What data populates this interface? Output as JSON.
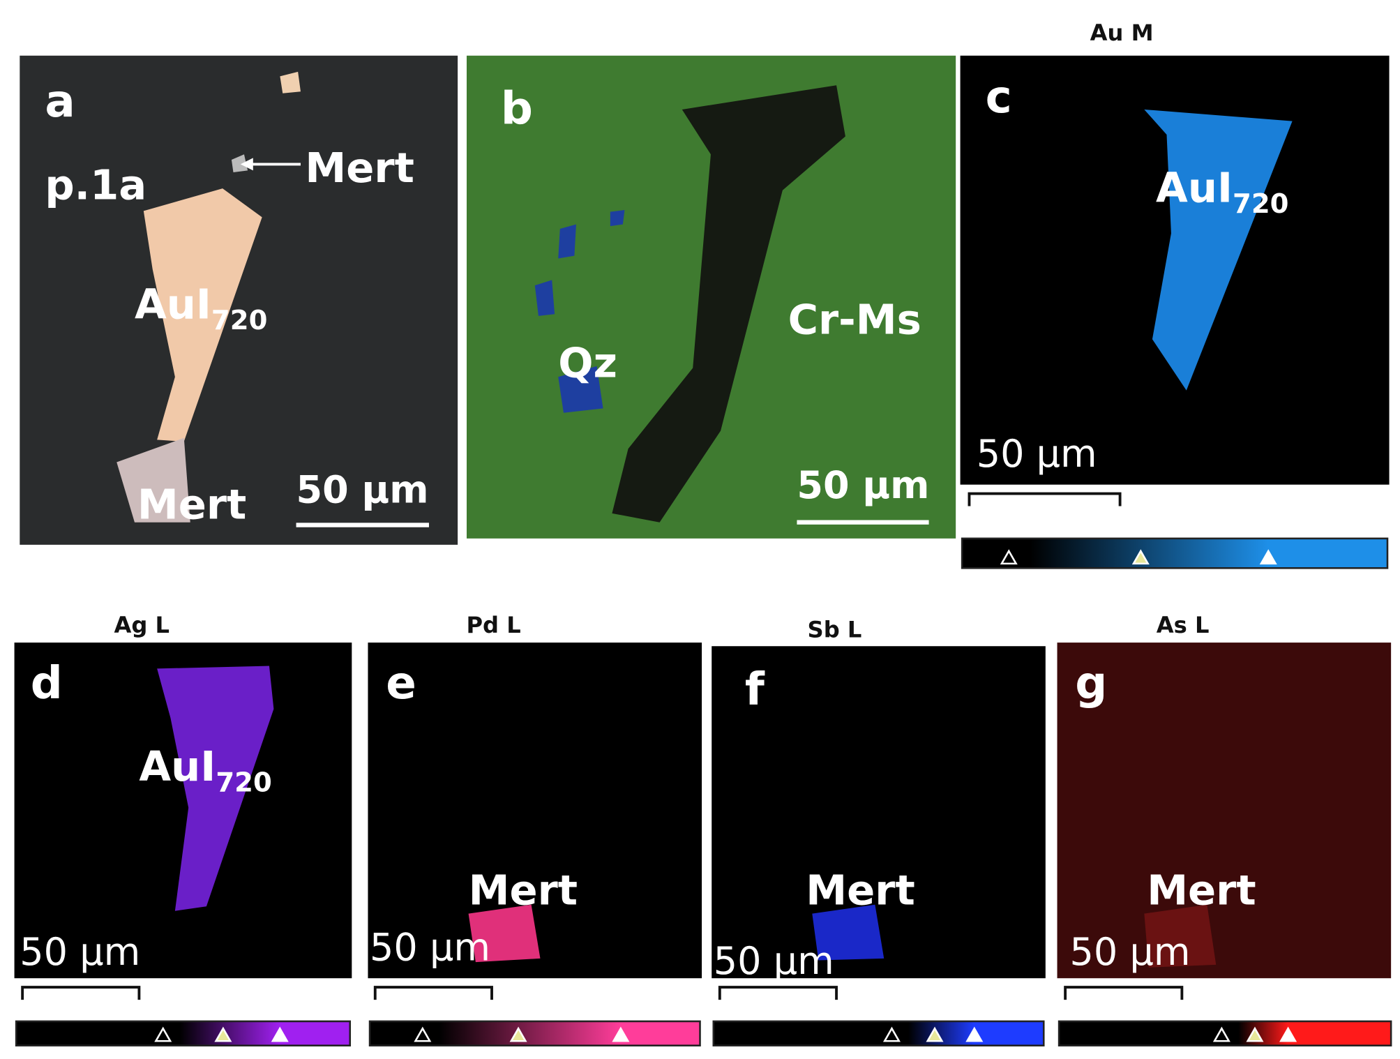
{
  "panels": [
    {
      "letter": "a",
      "labels": [
        {
          "text": "p.1a"
        },
        {
          "text": "Mert"
        },
        {
          "text": "AuI",
          "sub": "720"
        },
        {
          "text": "Mert"
        }
      ],
      "scale_bar": "50 µm"
    },
    {
      "letter": "b",
      "labels": [
        {
          "text": "Qz"
        },
        {
          "text": "Cr-Ms"
        }
      ],
      "scale_bar": "50 µm"
    },
    {
      "letter": "c",
      "title": "Au M",
      "labels": [
        {
          "text": "AuI",
          "sub": "720"
        }
      ],
      "scale_bar": "50 µm"
    },
    {
      "letter": "d",
      "title": "Ag L",
      "labels": [
        {
          "text": "AuI",
          "sub": "720"
        }
      ],
      "scale_bar": "50 µm"
    },
    {
      "letter": "e",
      "title": "Pd L",
      "labels": [
        {
          "text": "Mert"
        }
      ],
      "scale_bar": "50 µm"
    },
    {
      "letter": "f",
      "title": "Sb L",
      "labels": [
        {
          "text": "Mert"
        }
      ],
      "scale_bar": "50 µm"
    },
    {
      "letter": "g",
      "title": "As L",
      "labels": [
        {
          "text": "Mert"
        }
      ],
      "scale_bar": "50 µm"
    }
  ]
}
